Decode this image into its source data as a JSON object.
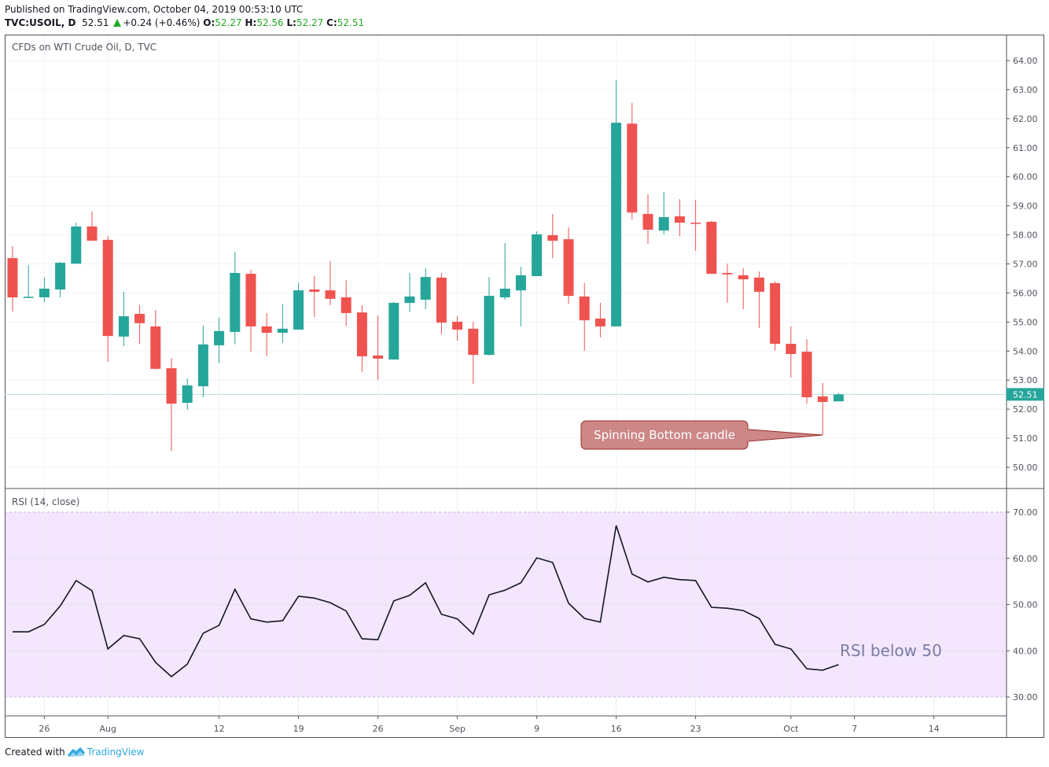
{
  "header": {
    "published": "Published on TradingView.com, October 04, 2019 00:53:10 UTC",
    "symbol": "TVC:USOIL, D",
    "last": "52.51",
    "change": "+0.24 (+0.46%)",
    "o_label": "O:",
    "o": "52.27",
    "h_label": "H:",
    "h": "52.56",
    "l_label": "L:",
    "l": "52.27",
    "c_label": "C:",
    "c": "52.51"
  },
  "footer": {
    "created_with": "Created with",
    "brand": "TradingView",
    "icon": "tradingview-logo-icon"
  },
  "colors": {
    "up": "#26a69a",
    "down": "#ef5350",
    "rsi_line": "#131722",
    "rsi_band": "#f3e6fd",
    "callout_fill": "#cd8787",
    "callout_border": "#9b2b2b"
  },
  "chart_data": [
    {
      "type": "candlestick",
      "title": "CFDs on WTI Crude Oil, D, TVC",
      "ylim": [
        49.3,
        64.8
      ],
      "yticks": [
        "50.00",
        "51.00",
        "52.00",
        "53.00",
        "54.00",
        "55.00",
        "56.00",
        "57.00",
        "58.00",
        "59.00",
        "60.00",
        "61.00",
        "62.00",
        "63.00",
        "64.00"
      ],
      "last_price_label": "52.51",
      "last_price": 52.51,
      "xticks": [
        {
          "i": 2,
          "label": "26"
        },
        {
          "i": 6,
          "label": "Aug"
        },
        {
          "i": 13,
          "label": "12"
        },
        {
          "i": 18,
          "label": "19"
        },
        {
          "i": 23,
          "label": "26"
        },
        {
          "i": 28,
          "label": "Sep"
        },
        {
          "i": 33,
          "label": "9"
        },
        {
          "i": 38,
          "label": "16"
        },
        {
          "i": 43,
          "label": "23"
        },
        {
          "i": 49,
          "label": "Oct"
        },
        {
          "i": 53,
          "label": "7"
        },
        {
          "i": 58,
          "label": "14"
        }
      ],
      "ohlc_columns": [
        "open",
        "high",
        "low",
        "close"
      ],
      "ohlc": [
        [
          57.2,
          57.61,
          55.36,
          55.85
        ],
        [
          55.85,
          56.96,
          55.83,
          55.87
        ],
        [
          55.85,
          56.53,
          55.69,
          56.15
        ],
        [
          56.12,
          57.07,
          55.85,
          57.04
        ],
        [
          57.01,
          58.42,
          57.0,
          58.29
        ],
        [
          58.29,
          58.8,
          57.8,
          57.8
        ],
        [
          57.83,
          57.96,
          53.63,
          54.52
        ],
        [
          54.5,
          56.04,
          54.17,
          55.2
        ],
        [
          55.28,
          55.58,
          54.25,
          54.96
        ],
        [
          54.85,
          55.42,
          53.37,
          53.39
        ],
        [
          53.41,
          53.76,
          50.57,
          52.19
        ],
        [
          52.22,
          53.06,
          51.98,
          52.82
        ],
        [
          52.79,
          54.87,
          52.41,
          54.23
        ],
        [
          54.2,
          55.15,
          53.58,
          54.69
        ],
        [
          54.66,
          57.42,
          54.23,
          56.69
        ],
        [
          56.66,
          56.8,
          53.98,
          54.85
        ],
        [
          54.85,
          55.31,
          53.82,
          54.63
        ],
        [
          54.63,
          55.63,
          54.28,
          54.77
        ],
        [
          54.74,
          56.36,
          54.74,
          56.09
        ],
        [
          56.12,
          56.58,
          55.17,
          56.04
        ],
        [
          56.09,
          57.1,
          55.58,
          55.8
        ],
        [
          55.85,
          56.44,
          54.87,
          55.31
        ],
        [
          55.33,
          55.58,
          53.28,
          53.82
        ],
        [
          53.85,
          55.23,
          53.01,
          53.74
        ],
        [
          53.71,
          55.69,
          53.71,
          55.66
        ],
        [
          55.66,
          56.69,
          55.34,
          55.88
        ],
        [
          55.77,
          56.85,
          55.44,
          56.55
        ],
        [
          56.53,
          56.69,
          54.58,
          54.98
        ],
        [
          55.01,
          55.2,
          54.36,
          54.74
        ],
        [
          54.77,
          55.01,
          52.87,
          53.87
        ],
        [
          53.87,
          56.55,
          53.85,
          55.9
        ],
        [
          55.85,
          57.72,
          55.77,
          56.15
        ],
        [
          56.09,
          56.9,
          54.85,
          56.61
        ],
        [
          56.58,
          58.12,
          56.58,
          58.02
        ],
        [
          57.99,
          58.72,
          57.2,
          57.8
        ],
        [
          57.85,
          58.26,
          55.63,
          55.9
        ],
        [
          55.88,
          56.34,
          54.01,
          55.06
        ],
        [
          55.12,
          55.66,
          54.47,
          54.85
        ],
        [
          54.85,
          63.32,
          54.85,
          61.86
        ],
        [
          61.83,
          62.54,
          58.53,
          58.77
        ],
        [
          58.72,
          59.4,
          57.69,
          58.18
        ],
        [
          58.15,
          59.48,
          58.02,
          58.61
        ],
        [
          58.64,
          59.23,
          57.96,
          58.42
        ],
        [
          58.42,
          59.21,
          57.45,
          58.39
        ],
        [
          58.45,
          58.48,
          56.66,
          56.66
        ],
        [
          56.69,
          57.01,
          55.66,
          56.64
        ],
        [
          56.61,
          56.85,
          55.44,
          56.47
        ],
        [
          56.53,
          56.74,
          54.79,
          56.04
        ],
        [
          56.34,
          56.4,
          54.01,
          54.25
        ],
        [
          54.25,
          54.85,
          53.09,
          53.9
        ],
        [
          53.98,
          54.41,
          52.19,
          52.41
        ],
        [
          52.44,
          52.9,
          51.11,
          52.25
        ],
        [
          52.27,
          52.56,
          52.27,
          52.51
        ]
      ],
      "annotation": {
        "text": "Spinning Bottom candle",
        "target_index": 51,
        "target_price": 51.11
      }
    },
    {
      "type": "line",
      "title": "RSI (14, close)",
      "ylim": [
        25.3,
        74.4
      ],
      "yticks": [
        "30.00",
        "40.00",
        "50.00",
        "60.00",
        "70.00"
      ],
      "band": [
        30,
        70
      ],
      "values": [
        44.1,
        44.1,
        45.7,
        49.7,
        55.2,
        53.0,
        40.4,
        43.3,
        42.6,
        37.5,
        34.4,
        37.1,
        43.8,
        45.5,
        53.3,
        46.9,
        46.2,
        46.5,
        51.8,
        51.4,
        50.4,
        48.6,
        42.6,
        42.4,
        50.8,
        52.0,
        54.7,
        47.9,
        46.9,
        43.6,
        52.1,
        53.1,
        54.7,
        60.1,
        59.1,
        50.3,
        47.0,
        46.2,
        67.1,
        56.6,
        54.9,
        55.9,
        55.4,
        55.2,
        49.4,
        49.2,
        48.7,
        47.0,
        41.4,
        40.4,
        36.1,
        35.8,
        37.0
      ],
      "annotation": {
        "text": "RSI below 50"
      }
    }
  ]
}
